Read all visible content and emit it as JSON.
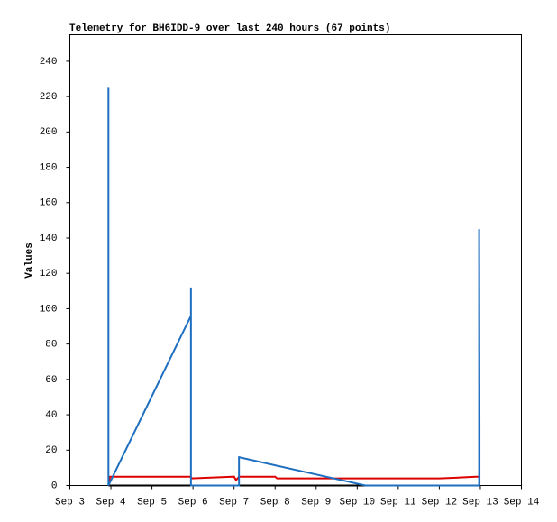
{
  "chart_data": {
    "type": "line",
    "title": "Telemetry for BH6IDD-9 over last 240 hours (67 points)",
    "y_label": "Values",
    "xlim": [
      3,
      14
    ],
    "xticks": [
      {
        "value": 3,
        "label": "Sep 3"
      },
      {
        "value": 4,
        "label": "Sep 4"
      },
      {
        "value": 5,
        "label": "Sep 5"
      },
      {
        "value": 6,
        "label": "Sep 6"
      },
      {
        "value": 7,
        "label": "Sep 7"
      },
      {
        "value": 8,
        "label": "Sep 8"
      },
      {
        "value": 9,
        "label": "Sep 9"
      },
      {
        "value": 10,
        "label": "Sep 10"
      },
      {
        "value": 11,
        "label": "Sep 11"
      },
      {
        "value": 12,
        "label": "Sep 12"
      },
      {
        "value": 13,
        "label": "Sep 13"
      },
      {
        "value": 14,
        "label": "Sep 14"
      }
    ],
    "ylim": [
      0,
      255
    ],
    "yticks": [
      0,
      20,
      40,
      60,
      80,
      100,
      120,
      140,
      160,
      180,
      200,
      220,
      240
    ],
    "grid": false,
    "series": [
      {
        "color": "#000000",
        "x": [
          3.94,
          12.97
        ],
        "values": [
          0,
          0
        ]
      },
      {
        "color": "#dd0000",
        "x": [
          3.94,
          3.98,
          5.95,
          5.97,
          7.0,
          7.05,
          7.12,
          8.0,
          8.05,
          12.0,
          12.5,
          12.9,
          12.97
        ],
        "values": [
          0,
          5,
          5,
          4,
          5,
          3,
          5,
          5,
          4,
          4,
          4.5,
          5,
          5
        ]
      },
      {
        "color": "#1f6fc0",
        "x": [
          3.94,
          3.94,
          5.95,
          5.95,
          5.95,
          7.12,
          7.12,
          10.2,
          12.97,
          12.97,
          12.98,
          12.98
        ],
        "values": [
          225,
          0,
          96,
          112,
          0,
          0,
          16,
          0,
          0,
          145,
          32,
          0
        ]
      }
    ]
  }
}
